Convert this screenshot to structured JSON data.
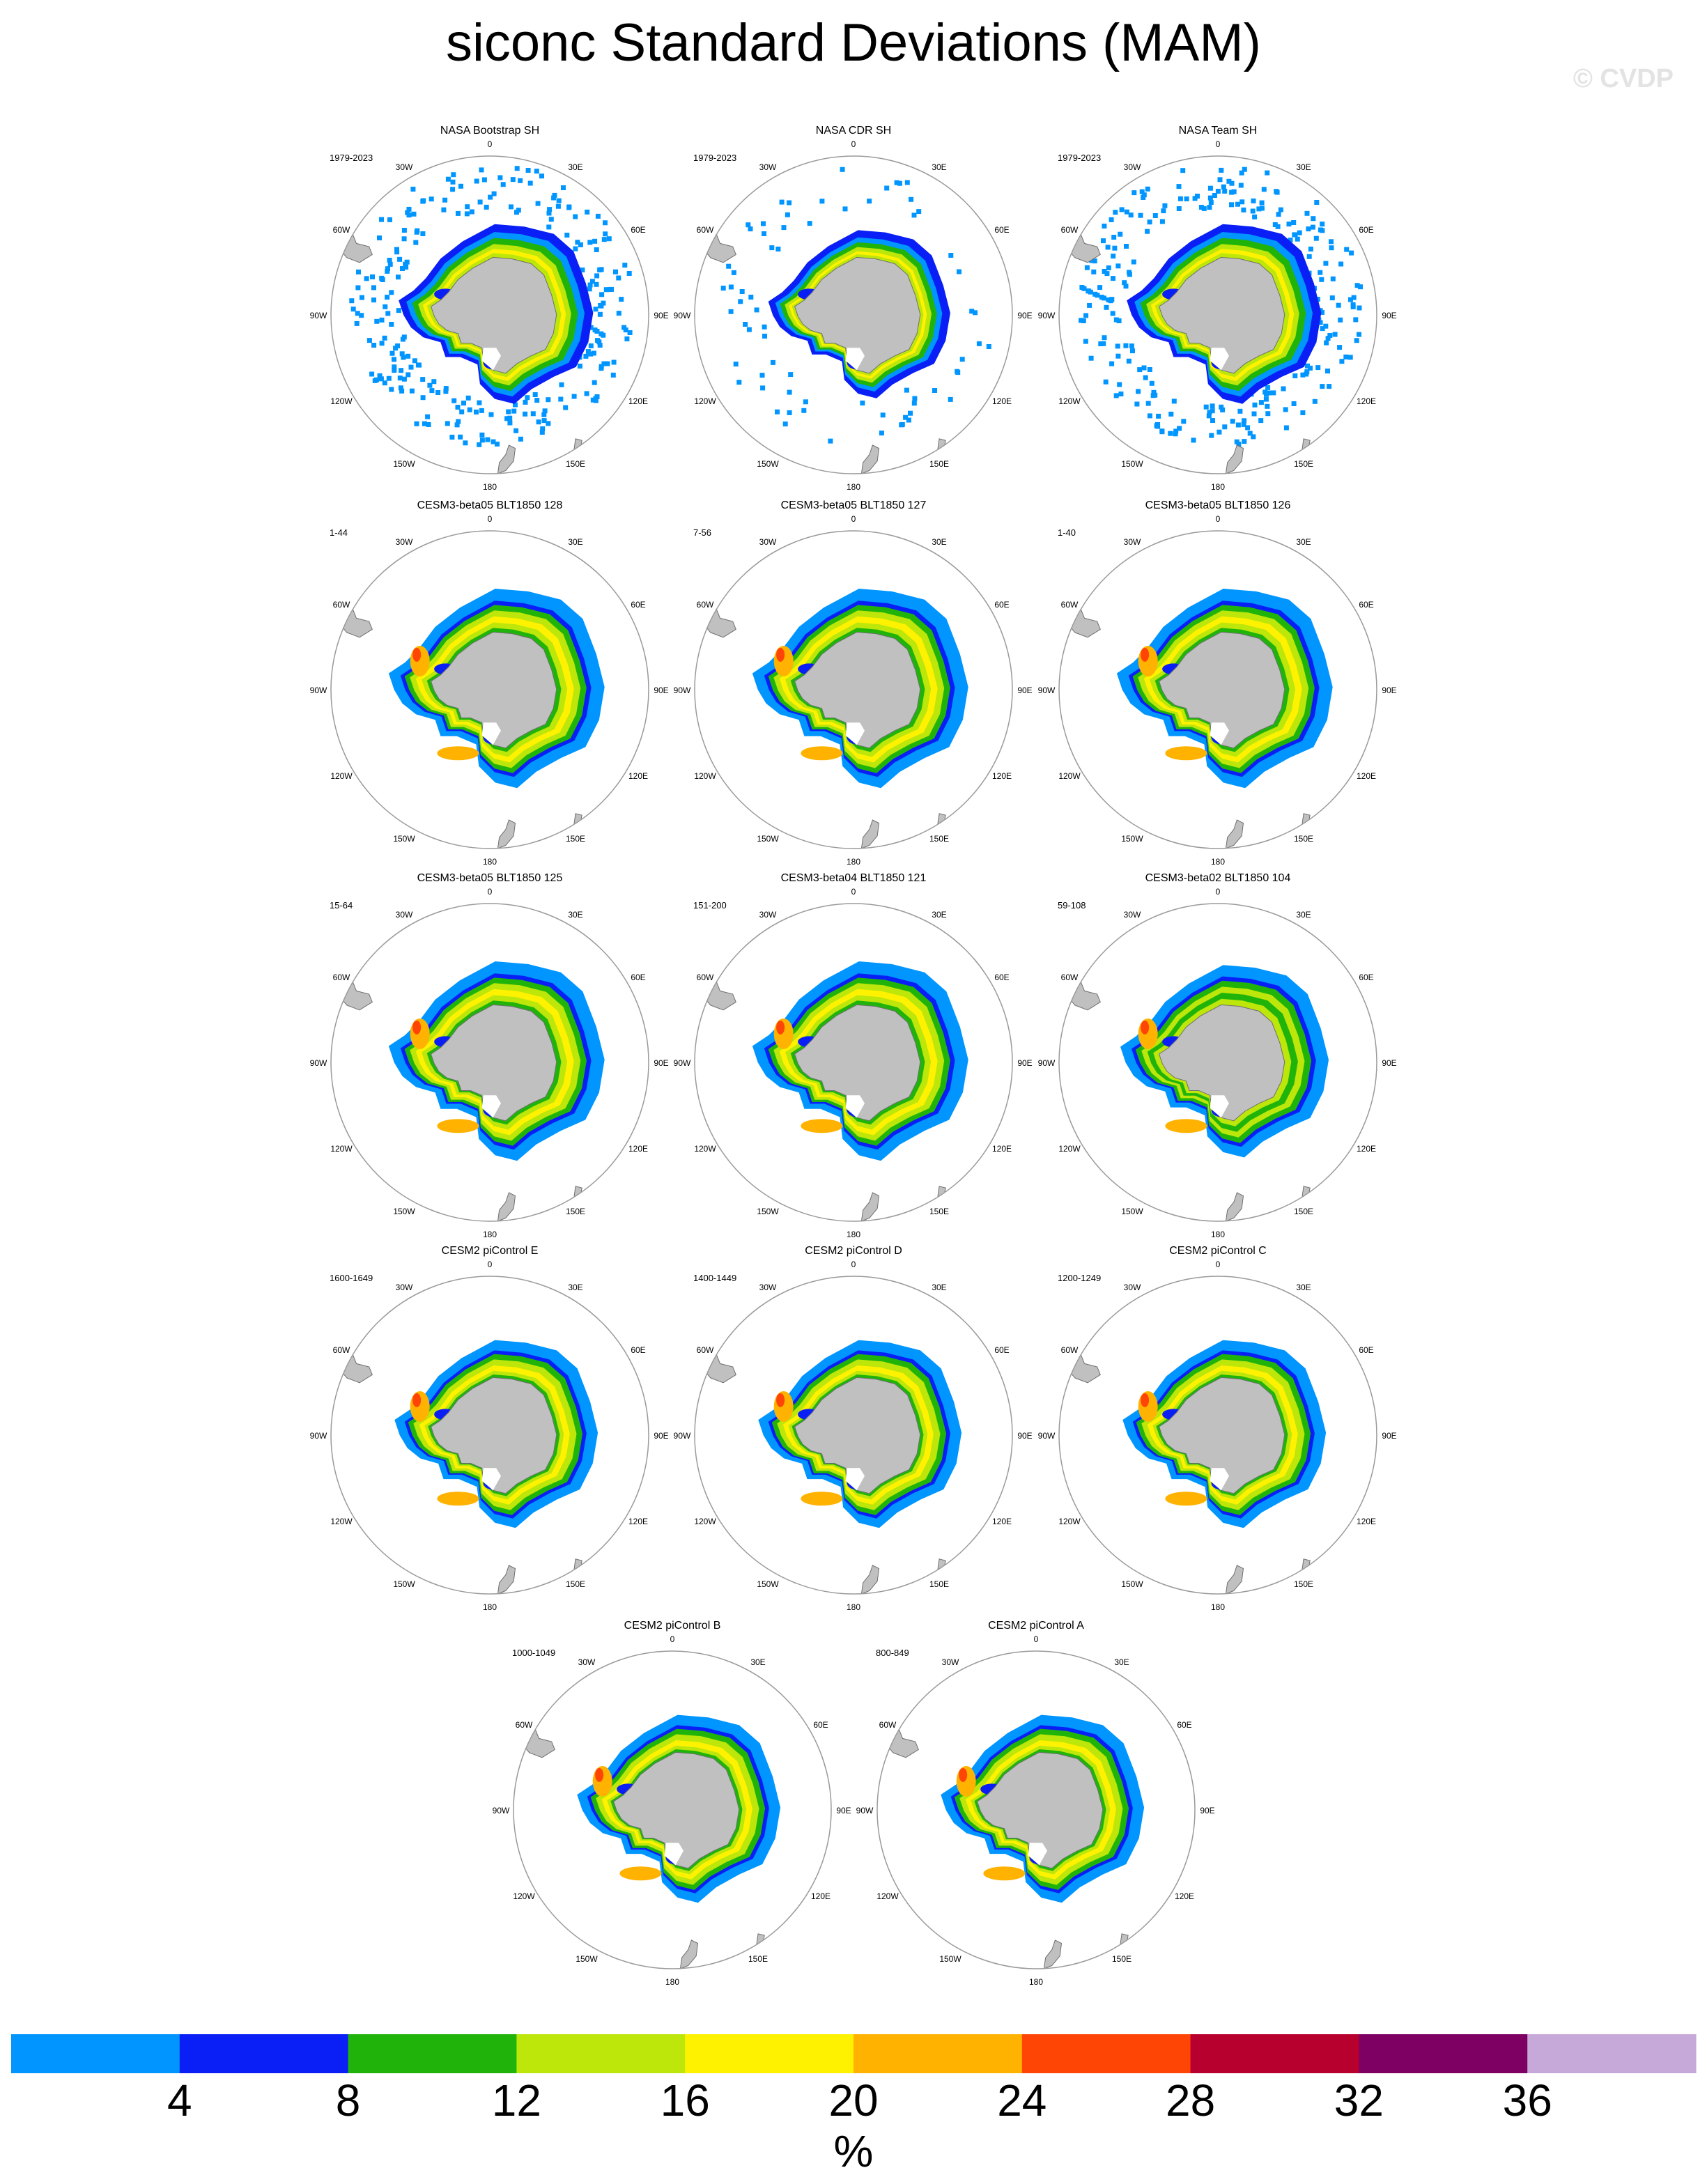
{
  "title": "siconc Standard Deviations (MAM)",
  "watermark": "© CVDP",
  "colors": {
    "land": "#c0c0c0",
    "land_edge": "#6f6f6f",
    "circle": "#9a9a9a"
  },
  "chart_data": {
    "type": "heatmap",
    "projection": "south polar stereographic",
    "longitude_labels": [
      "0",
      "30E",
      "60E",
      "90E",
      "120E",
      "150E",
      "180",
      "150W",
      "120W",
      "90W",
      "60W",
      "30W"
    ],
    "panels": [
      {
        "name": "NASA Bootstrap SH",
        "period": "1979-2023",
        "style": "obs"
      },
      {
        "name": "NASA CDR SH",
        "period": "1979-2023",
        "style": "obs_cdr"
      },
      {
        "name": "NASA Team SH",
        "period": "1979-2023",
        "style": "obs"
      },
      {
        "name": "CESM3-beta05 BLT1850 128",
        "period": "1-44",
        "style": "model_wide"
      },
      {
        "name": "CESM3-beta05 BLT1850 127",
        "period": "7-56",
        "style": "model_wide"
      },
      {
        "name": "CESM3-beta05 BLT1850 126",
        "period": "1-40",
        "style": "model_wide"
      },
      {
        "name": "CESM3-beta05 BLT1850 125",
        "period": "15-64",
        "style": "model_wide"
      },
      {
        "name": "CESM3-beta04 BLT1850 121",
        "period": "151-200",
        "style": "model_wide"
      },
      {
        "name": "CESM3-beta02 BLT1850 104",
        "period": "59-108",
        "style": "model_cool"
      },
      {
        "name": "CESM2 piControl E",
        "period": "1600-1649",
        "style": "model_narrow"
      },
      {
        "name": "CESM2 piControl D",
        "period": "1400-1449",
        "style": "model_narrow"
      },
      {
        "name": "CESM2 piControl C",
        "period": "1200-1249",
        "style": "model_narrow"
      },
      {
        "name": "CESM2 piControl B",
        "period": "1000-1049",
        "style": "model_narrow"
      },
      {
        "name": "CESM2 piControl A",
        "period": "800-849",
        "style": "model_narrow"
      }
    ],
    "colorbar": {
      "label": "%",
      "ticks": [
        "4",
        "8",
        "12",
        "16",
        "20",
        "24",
        "28",
        "32",
        "36"
      ],
      "tick_values": [
        4,
        8,
        12,
        16,
        20,
        24,
        28,
        32,
        36
      ],
      "colors": [
        "#0095ff",
        "#0a1ff5",
        "#20b40b",
        "#bde60a",
        "#fff200",
        "#ffb300",
        "#ff4505",
        "#b8002e",
        "#7d0062",
        "#c6a9d8"
      ]
    }
  }
}
